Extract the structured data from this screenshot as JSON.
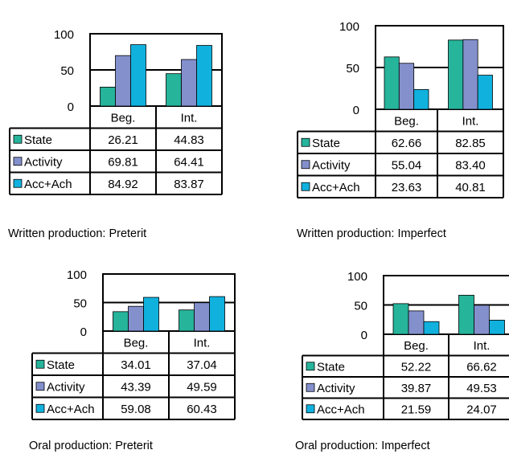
{
  "colors": {
    "state": "#26B49B",
    "activity": "#8390CC",
    "acc_ach": "#11B1DE"
  },
  "categories": [
    "Beg.",
    "Int."
  ],
  "chart_data": [
    {
      "type": "bar",
      "caption": "Written production: Preterit",
      "ylim": [
        0,
        100
      ],
      "yticks": [
        0,
        50,
        100
      ],
      "categories": [
        "Beg.",
        "Int."
      ],
      "series": [
        {
          "name": "State",
          "values": [
            "26.21",
            "44.83"
          ]
        },
        {
          "name": "Activity",
          "values": [
            "69.81",
            "64.41"
          ]
        },
        {
          "name": "Acc+Ach",
          "values": [
            "84.92",
            "83.87"
          ]
        }
      ]
    },
    {
      "type": "bar",
      "caption": "Written production: Imperfect",
      "ylim": [
        0,
        100
      ],
      "yticks": [
        0,
        50,
        100
      ],
      "categories": [
        "Beg.",
        "Int."
      ],
      "series": [
        {
          "name": "State",
          "values": [
            "62.66",
            "82.85"
          ]
        },
        {
          "name": "Activity",
          "values": [
            "55.04",
            "83.40"
          ]
        },
        {
          "name": "Acc+Ach",
          "values": [
            "23.63",
            "40.81"
          ]
        }
      ]
    },
    {
      "type": "bar",
      "caption": "Oral production: Preterit",
      "ylim": [
        0,
        100
      ],
      "yticks": [
        0,
        50,
        100
      ],
      "categories": [
        "Beg.",
        "Int."
      ],
      "series": [
        {
          "name": "State",
          "values": [
            "34.01",
            "37.04"
          ]
        },
        {
          "name": "Activity",
          "values": [
            "43.39",
            "49.59"
          ]
        },
        {
          "name": "Acc+Ach",
          "values": [
            "59.08",
            "60.43"
          ]
        }
      ]
    },
    {
      "type": "bar",
      "caption": "Oral production: Imperfect",
      "ylim": [
        0,
        100
      ],
      "yticks": [
        0,
        50,
        100
      ],
      "categories": [
        "Beg.",
        "Int."
      ],
      "series": [
        {
          "name": "State",
          "values": [
            "52.22",
            "66.62"
          ]
        },
        {
          "name": "Activity",
          "values": [
            "39.87",
            "49.53"
          ]
        },
        {
          "name": "Acc+Ach",
          "values": [
            "21.59",
            "24.07"
          ]
        }
      ]
    }
  ]
}
